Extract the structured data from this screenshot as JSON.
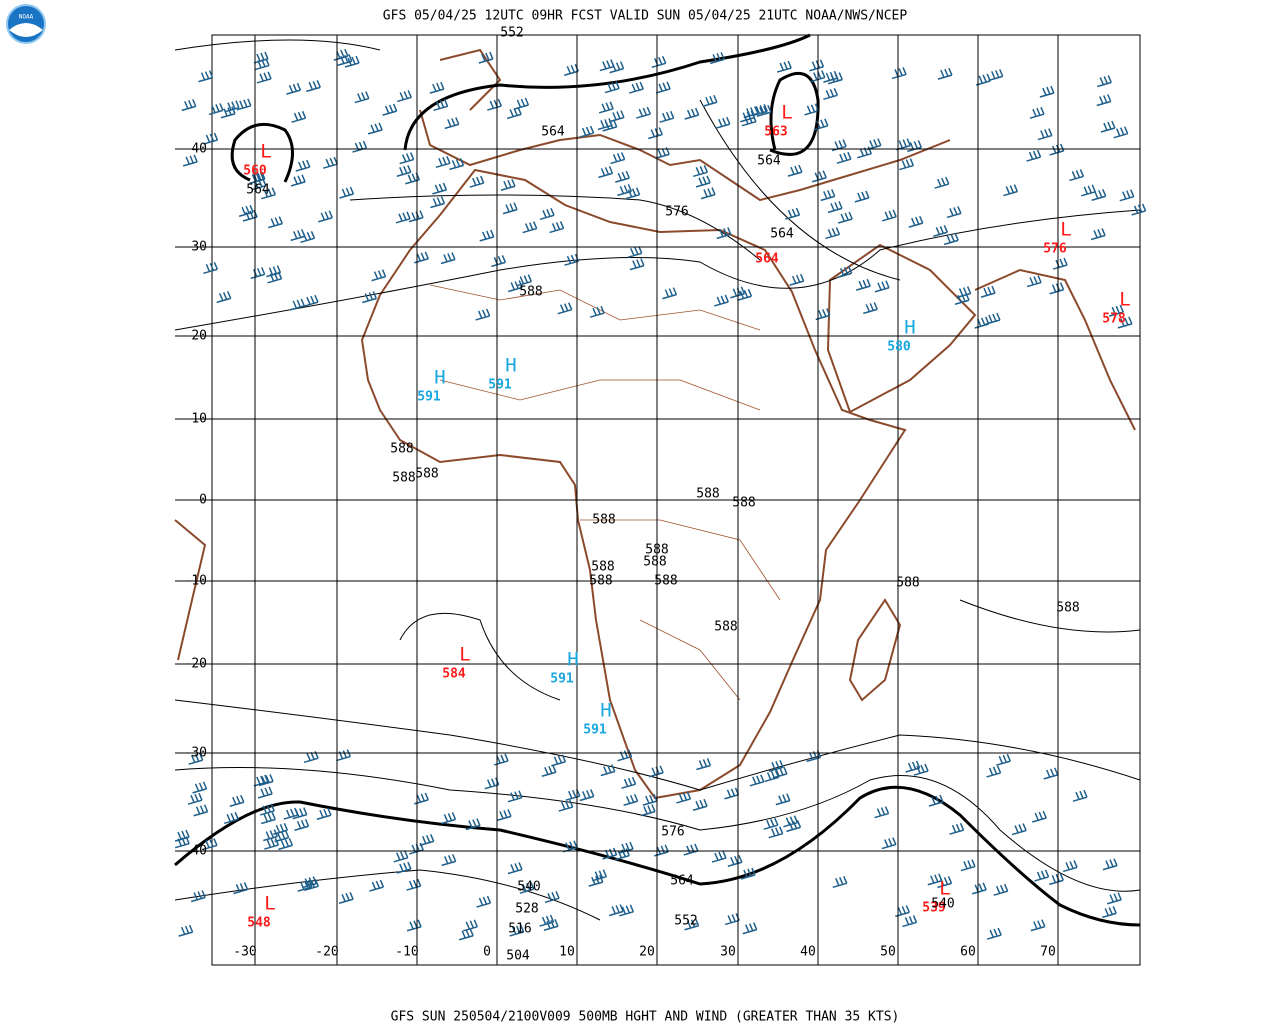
{
  "header": {
    "logo": "NOAA",
    "title": "GFS 05/04/25 12UTC 09HR FCST VALID SUN 05/04/25 21UTC NOAA/NWS/NCEP"
  },
  "footer": {
    "text": "GFS SUN 250504/2100V009 500MB HGHT AND WIND (GREATER THAN 35 KTS)"
  },
  "map": {
    "lat_labels": [
      "40",
      "30",
      "20",
      "10",
      "0",
      "-10",
      "-20",
      "-30",
      "-40"
    ],
    "lon_labels": [
      "-30",
      "-20",
      "-10",
      "0",
      "10",
      "20",
      "30",
      "40",
      "50",
      "60",
      "70"
    ],
    "centers": [
      {
        "symbol": "L",
        "value": "560"
      },
      {
        "symbol": "L",
        "value": "563"
      },
      {
        "value": "564"
      },
      {
        "symbol": "L",
        "value": "576"
      },
      {
        "symbol": "L",
        "value": "578"
      },
      {
        "symbol": "H",
        "value": "580"
      },
      {
        "symbol": "H",
        "value": "591"
      },
      {
        "symbol": "H",
        "value": "591"
      },
      {
        "symbol": "L",
        "value": "584"
      },
      {
        "symbol": "H",
        "value": "591"
      },
      {
        "symbol": "H",
        "value": "591"
      },
      {
        "symbol": "L",
        "value": "548"
      },
      {
        "symbol": "L",
        "value": "539"
      }
    ],
    "contour_labels": [
      "552",
      "564",
      "564",
      "564",
      "564",
      "576",
      "588",
      "588",
      "588",
      "588",
      "588",
      "588",
      "588",
      "588",
      "588",
      "588",
      "588",
      "588",
      "588",
      "588",
      "588",
      "576",
      "564",
      "540",
      "528",
      "516",
      "504",
      "552",
      "540"
    ]
  }
}
